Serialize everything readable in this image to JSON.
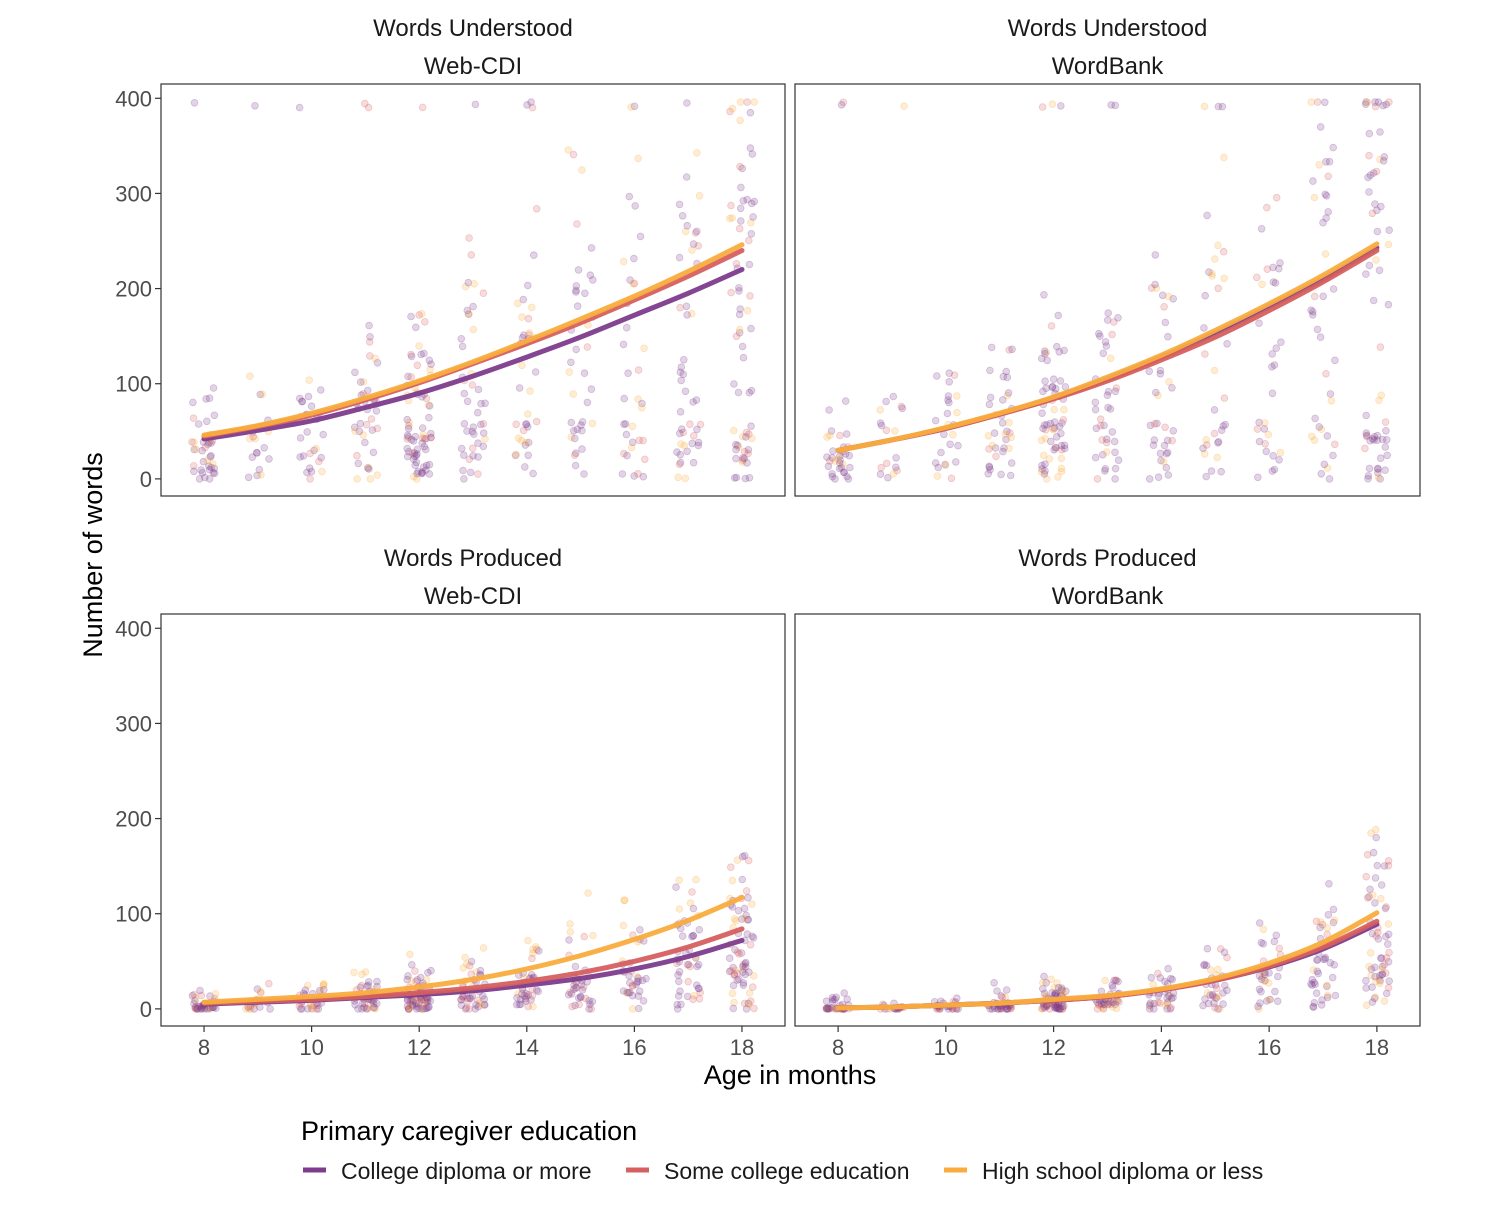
{
  "chart_data": {
    "type": "scatter",
    "layout": "facet_grid_2x2",
    "xlabel": "Age in months",
    "ylabel": "Number of words",
    "xlim": [
      7.2,
      18.8
    ],
    "ylim": [
      -18,
      415
    ],
    "x_ticks": [
      8,
      10,
      12,
      14,
      16,
      18
    ],
    "y_ticks": [
      0,
      100,
      200,
      300,
      400
    ],
    "grid": false,
    "legend": {
      "title": "Primary caregiver education",
      "position": "bottom",
      "entries": [
        "College diploma or more",
        "Some college education",
        "High school diploma or less"
      ]
    },
    "colors": {
      "College diploma or more": "#7d3c8c",
      "Some college education": "#d65f5f",
      "High school diploma or less": "#f9ac3d"
    },
    "ages": [
      8,
      9,
      10,
      11,
      12,
      13,
      14,
      15,
      16,
      17,
      18
    ],
    "facets": [
      {
        "measure": "Words Understood",
        "source": "Web-CDI",
        "trend_lines": [
          {
            "group": "College diploma or more",
            "y": [
              42,
              51,
              61,
              75,
              90,
              108,
              128,
              149,
              172,
              195,
              220
            ]
          },
          {
            "group": "Some college education",
            "y": [
              45,
              55,
              67,
              83,
              101,
              121,
              142,
              164,
              188,
              213,
              240
            ]
          },
          {
            "group": "High school diploma or less",
            "y": [
              46,
              56,
              69,
              85,
              103,
              123,
              145,
              168,
              192,
              218,
              246
            ]
          }
        ]
      },
      {
        "measure": "Words Understood",
        "source": "WordBank",
        "trend_lines": [
          {
            "group": "College diploma or more",
            "y": [
              30,
              41,
              53,
              68,
              85,
              105,
              128,
              153,
              181,
              210,
              243
            ]
          },
          {
            "group": "Some college education",
            "y": [
              30,
              41,
              53,
              68,
              84,
              103,
              125,
              149,
              177,
              207,
              240
            ]
          },
          {
            "group": "High school diploma or less",
            "y": [
              30,
              41,
              54,
              69,
              86,
              107,
              130,
              156,
              184,
              214,
              247
            ]
          }
        ]
      },
      {
        "measure": "Words Produced",
        "source": "Web-CDI",
        "trend_lines": [
          {
            "group": "College diploma or more",
            "y": [
              5,
              7,
              9,
              12,
              15,
              19,
              25,
              32,
              42,
              55,
              72
            ]
          },
          {
            "group": "Some college education",
            "y": [
              6,
              8,
              10,
              13,
              17,
              22,
              29,
              38,
              50,
              65,
              84
            ]
          },
          {
            "group": "High school diploma or less",
            "y": [
              7,
              10,
              13,
              17,
              23,
              31,
              42,
              56,
              73,
              93,
              117
            ]
          }
        ]
      },
      {
        "measure": "Words Produced",
        "source": "WordBank",
        "trend_lines": [
          {
            "group": "College diploma or more",
            "y": [
              1,
              2,
              4,
              6,
              9,
              13,
              20,
              30,
              44,
              63,
              89
            ]
          },
          {
            "group": "Some college education",
            "y": [
              1,
              2,
              4,
              6,
              9,
              13,
              20,
              30,
              45,
              65,
              92
            ]
          },
          {
            "group": "High school diploma or less",
            "y": [
              1,
              2,
              4,
              6,
              10,
              14,
              21,
              32,
              48,
              70,
              101
            ]
          }
        ]
      }
    ],
    "point_style": {
      "alpha": 0.22,
      "radius": 3.4
    }
  }
}
